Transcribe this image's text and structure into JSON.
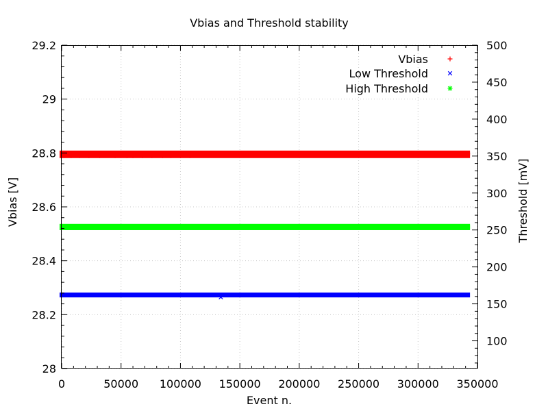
{
  "chart_data": {
    "type": "scatter",
    "title": "Vbias and Threshold stability",
    "xlabel": "Event n.",
    "ylabel": "Vbias [V]",
    "y2label": "Threshold [mV]",
    "xlim": [
      0,
      350000
    ],
    "ylim": [
      28.0,
      29.2
    ],
    "y2lim": [
      62.5,
      500
    ],
    "xticks": [
      "0",
      "50000",
      "100000",
      "150000",
      "200000",
      "250000",
      "300000",
      "350000"
    ],
    "yticks": [
      "28",
      "28.2",
      "28.4",
      "28.6",
      "28.8",
      "29",
      "29.2"
    ],
    "y2ticks": [
      "100",
      "150",
      "200",
      "250",
      "300",
      "350",
      "400",
      "450",
      "500"
    ],
    "grid": true,
    "legend": "top-right",
    "series": [
      {
        "name": "Vbias",
        "axis": "y",
        "marker": "plus",
        "color": "#ff0000",
        "x_range": [
          0,
          342000
        ],
        "levels": [
          28.8,
          28.79
        ],
        "sparse_points": [
          {
            "x": 2000,
            "y": 28.79
          },
          {
            "x": 8000,
            "y": 28.79
          },
          {
            "x": 15000,
            "y": 28.79
          },
          {
            "x": 23000,
            "y": 28.79
          },
          {
            "x": 32000,
            "y": 28.79
          },
          {
            "x": 45000,
            "y": 28.79
          },
          {
            "x": 55000,
            "y": 28.79
          },
          {
            "x": 60000,
            "y": 28.79
          },
          {
            "x": 68000,
            "y": 28.79
          },
          {
            "x": 76000,
            "y": 28.79
          },
          {
            "x": 85000,
            "y": 28.79
          },
          {
            "x": 92000,
            "y": 28.79
          },
          {
            "x": 100000,
            "y": 28.79
          },
          {
            "x": 108000,
            "y": 28.79
          }
        ]
      },
      {
        "name": "Low Threshold",
        "axis": "y2",
        "marker": "cross",
        "color": "#0000ff",
        "x_range": [
          0,
          342000
        ],
        "levels": [
          162
        ],
        "sparse_points": [
          {
            "x": 134000,
            "y": 159
          }
        ]
      },
      {
        "name": "High Threshold",
        "axis": "y2",
        "marker": "star",
        "color": "#00ff00",
        "x_range": [
          0,
          342000
        ],
        "levels": [
          255,
          253
        ],
        "sparse_points": []
      }
    ]
  }
}
